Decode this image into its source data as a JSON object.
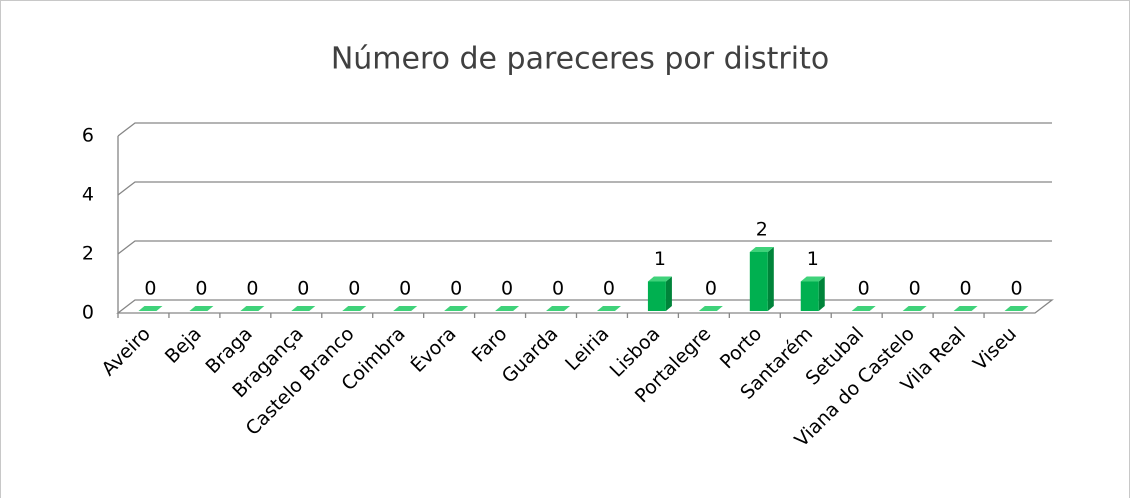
{
  "chart_data": {
    "type": "bar3d",
    "title": "Número de pareceres por distrito",
    "categories": [
      "Aveiro",
      "Beja",
      "Braga",
      "Bragança",
      "Castelo Branco",
      "Coimbra",
      "Évora",
      "Faro",
      "Guarda",
      "Leiria",
      "Lisboa",
      "Portalegre",
      "Porto",
      "Santarém",
      "Setubal",
      "Viana do Castelo",
      "Vila Real",
      "Viseu"
    ],
    "values": [
      0,
      0,
      0,
      0,
      0,
      0,
      0,
      0,
      0,
      0,
      1,
      0,
      2,
      1,
      0,
      0,
      0,
      0
    ],
    "color": "#00b050",
    "ylim": [
      0,
      6
    ],
    "yticks": [
      0,
      2,
      4,
      6
    ],
    "grid": true
  }
}
